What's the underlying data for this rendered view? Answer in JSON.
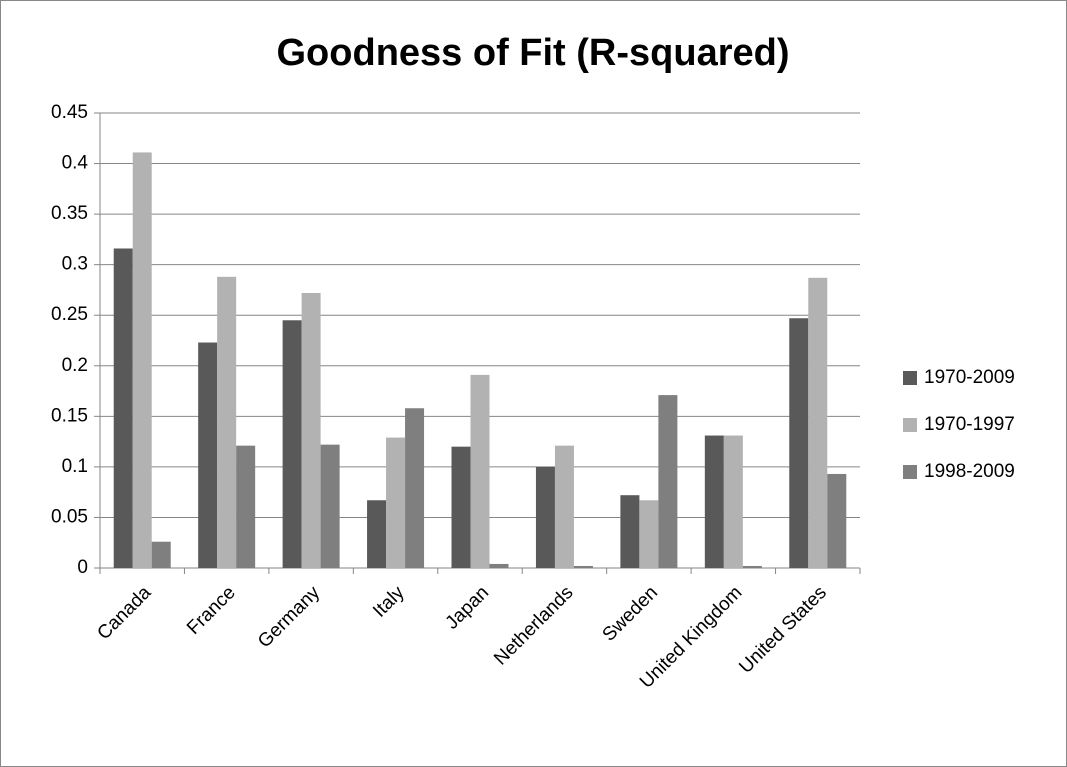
{
  "chart_data": {
    "type": "bar",
    "title": "Goodness of Fit (R-squared)",
    "categories": [
      "Canada",
      "France",
      "Germany",
      "Italy",
      "Japan",
      "Netherlands",
      "Sweden",
      "United Kingdom",
      "United States"
    ],
    "series": [
      {
        "name": "1970-2009",
        "color": "#595959",
        "values": [
          0.316,
          0.223,
          0.245,
          0.067,
          0.12,
          0.1,
          0.072,
          0.131,
          0.247
        ]
      },
      {
        "name": "1970-1997",
        "color": "#b2b2b2",
        "values": [
          0.411,
          0.288,
          0.272,
          0.129,
          0.191,
          0.121,
          0.067,
          0.131,
          0.287
        ]
      },
      {
        "name": "1998-2009",
        "color": "#7f7f7f",
        "values": [
          0.026,
          0.121,
          0.122,
          0.158,
          0.004,
          0.002,
          0.171,
          0.002,
          0.093
        ]
      }
    ],
    "ylim": [
      0,
      0.45
    ],
    "yticks": [
      0,
      0.05,
      0.1,
      0.15,
      0.2,
      0.25,
      0.3,
      0.35,
      0.4,
      0.45
    ],
    "grid": true,
    "legend": "right"
  }
}
